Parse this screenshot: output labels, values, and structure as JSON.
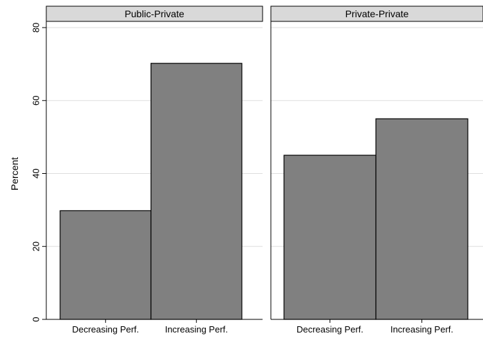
{
  "chart_data": {
    "type": "bar",
    "ylabel": "Percent",
    "ylim": [
      0,
      80
    ],
    "yticks": [
      0,
      20,
      40,
      60,
      80
    ],
    "grid": true,
    "bar_color": "#808080",
    "panels": [
      {
        "title": "Public-Private",
        "categories": [
          "Decreasing Perf.",
          "Increasing Perf."
        ],
        "values": [
          29.8,
          70.2
        ]
      },
      {
        "title": "Private-Private",
        "categories": [
          "Decreasing Perf.",
          "Increasing Perf."
        ],
        "values": [
          45.0,
          55.0
        ]
      }
    ]
  }
}
